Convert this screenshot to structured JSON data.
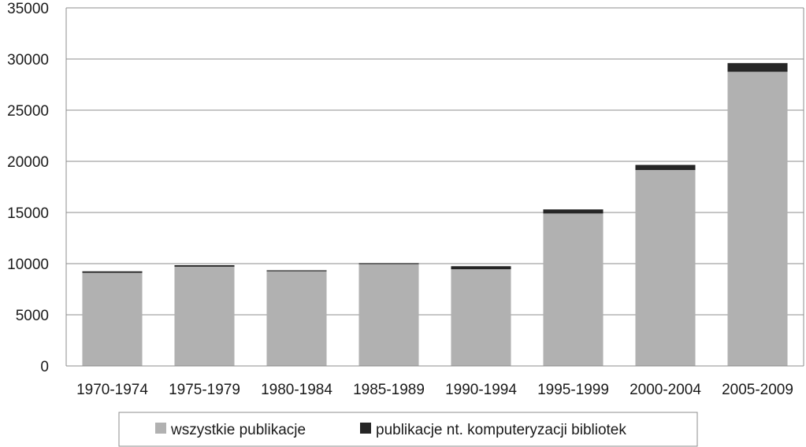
{
  "chart_data": {
    "type": "bar",
    "stacked": true,
    "categories": [
      "1970-1974",
      "1975-1979",
      "1980-1984",
      "1985-1989",
      "1990-1994",
      "1995-1999",
      "2000-2004",
      "2005-2009"
    ],
    "series": [
      {
        "name": "wszystkie publikacje",
        "color": "#b1b1b1",
        "values": [
          9100,
          9700,
          9250,
          9950,
          9450,
          14900,
          19150,
          28750
        ]
      },
      {
        "name": "publikacje nt. komputeryzacji bibliotek",
        "color": "#262626",
        "values": [
          150,
          150,
          100,
          100,
          300,
          400,
          500,
          850
        ]
      }
    ],
    "yticks": [
      "0",
      "5000",
      "10000",
      "15000",
      "20000",
      "25000",
      "30000",
      "35000"
    ],
    "ylim": [
      0,
      35000
    ],
    "grid": true,
    "legend_position": "bottom"
  }
}
